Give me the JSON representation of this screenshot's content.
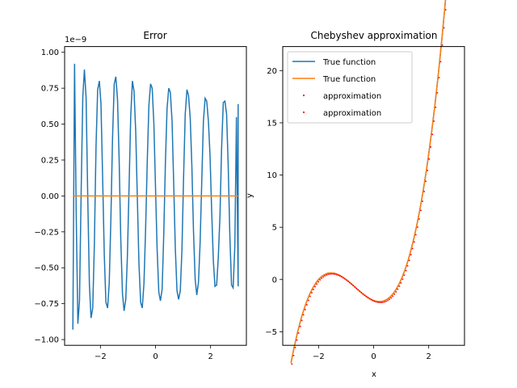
{
  "colors": {
    "blue": "#1f77b4",
    "orange": "#ff7f0e",
    "red": "#ff0000"
  },
  "chart_data": [
    {
      "type": "line",
      "title": "Error",
      "xlabel": "",
      "ylabel": "",
      "offset_label": "1e−9",
      "xlim": [
        -3.3,
        3.3
      ],
      "ylim": [
        -1.04,
        1.04
      ],
      "xticks": [
        -2,
        0,
        2
      ],
      "xtick_labels": [
        "−2",
        "0",
        "2"
      ],
      "yticks": [
        -1.0,
        -0.75,
        -0.5,
        -0.25,
        0.0,
        0.25,
        0.5,
        0.75,
        1.0
      ],
      "ytick_labels": [
        "−1.00",
        "−0.75",
        "−0.50",
        "−0.25",
        "0.00",
        "0.25",
        "0.50",
        "0.75",
        "1.00"
      ],
      "grid": false,
      "series": [
        {
          "color": "#1f77b4",
          "x": [
            -3.0,
            -2.94,
            -2.88,
            -2.82,
            -2.76,
            -2.7,
            -2.64,
            -2.58,
            -2.52,
            -2.46,
            -2.4,
            -2.34,
            -2.28,
            -2.22,
            -2.16,
            -2.1,
            -2.04,
            -1.98,
            -1.92,
            -1.86,
            -1.8,
            -1.74,
            -1.68,
            -1.62,
            -1.56,
            -1.5,
            -1.44,
            -1.38,
            -1.32,
            -1.26,
            -1.2,
            -1.14,
            -1.08,
            -1.02,
            -0.96,
            -0.9,
            -0.84,
            -0.78,
            -0.72,
            -0.66,
            -0.6,
            -0.54,
            -0.48,
            -0.42,
            -0.36,
            -0.3,
            -0.24,
            -0.18,
            -0.12,
            -0.06,
            0.0,
            0.06,
            0.12,
            0.18,
            0.24,
            0.3,
            0.36,
            0.42,
            0.48,
            0.54,
            0.6,
            0.66,
            0.72,
            0.78,
            0.84,
            0.9,
            0.96,
            1.02,
            1.08,
            1.14,
            1.2,
            1.26,
            1.32,
            1.38,
            1.44,
            1.5,
            1.56,
            1.62,
            1.68,
            1.74,
            1.8,
            1.86,
            1.92,
            1.98,
            2.04,
            2.1,
            2.16,
            2.22,
            2.28,
            2.34,
            2.4,
            2.46,
            2.52,
            2.58,
            2.64,
            2.7,
            2.76,
            2.82,
            2.88,
            2.94,
            3.0
          ],
          "y": [
            -0.93,
            0.92,
            -0.11,
            -0.89,
            -0.73,
            0.04,
            0.69,
            0.88,
            0.68,
            0.0,
            -0.62,
            -0.85,
            -0.78,
            -0.34,
            0.35,
            0.74,
            0.8,
            0.64,
            0.14,
            -0.41,
            -0.74,
            -0.78,
            -0.61,
            -0.15,
            0.4,
            0.78,
            0.83,
            0.67,
            0.25,
            -0.3,
            -0.68,
            -0.8,
            -0.72,
            -0.42,
            0.07,
            0.55,
            0.8,
            0.73,
            0.45,
            -0.01,
            -0.47,
            -0.74,
            -0.78,
            -0.61,
            -0.24,
            0.24,
            0.63,
            0.78,
            0.75,
            0.5,
            0.06,
            -0.37,
            -0.67,
            -0.73,
            -0.65,
            -0.27,
            0.24,
            0.61,
            0.75,
            0.72,
            0.52,
            0.09,
            -0.36,
            -0.66,
            -0.72,
            -0.66,
            -0.38,
            0.14,
            0.57,
            0.74,
            0.7,
            0.54,
            0.21,
            -0.24,
            -0.58,
            -0.69,
            -0.6,
            -0.33,
            0.11,
            0.52,
            0.68,
            0.66,
            0.52,
            0.28,
            -0.1,
            -0.45,
            -0.63,
            -0.62,
            -0.43,
            -0.14,
            0.33,
            0.65,
            0.66,
            0.57,
            0.21,
            -0.27,
            -0.62,
            -0.64,
            -0.35,
            0.55,
            -0.63
          ],
          "y_extra": [
            0.64
          ]
        },
        {
          "color": "#ff7f0e",
          "x": [
            -3.0,
            3.0
          ],
          "y": [
            0.0,
            0.0
          ]
        }
      ]
    },
    {
      "type": "line",
      "title": "Chebyshev approximation",
      "xlabel": "x",
      "ylabel": "y",
      "xlim": [
        -3.3,
        3.3
      ],
      "ylim": [
        -6.3,
        22.3
      ],
      "xticks": [
        -2,
        0,
        2
      ],
      "xtick_labels": [
        "−2",
        "0",
        "2"
      ],
      "yticks": [
        -5,
        0,
        5,
        10,
        15,
        20
      ],
      "ytick_labels": [
        "−5",
        "0",
        "5",
        "10",
        "15",
        "20"
      ],
      "grid": false,
      "legend_position": "top-left",
      "legend": [
        "True function",
        "True function",
        "approximation",
        "approximation"
      ],
      "function": "x^3 + 2x^2 - x - 2",
      "x_range": [
        -3,
        3
      ],
      "series": [
        {
          "name": "True function",
          "color": "#1f77b4",
          "style": "line"
        },
        {
          "name": "True function",
          "color": "#ff7f0e",
          "style": "line"
        },
        {
          "name": "approximation",
          "color": "#ff0000",
          "style": "points"
        },
        {
          "name": "approximation",
          "color": "#ff0000",
          "style": "points"
        }
      ]
    }
  ]
}
